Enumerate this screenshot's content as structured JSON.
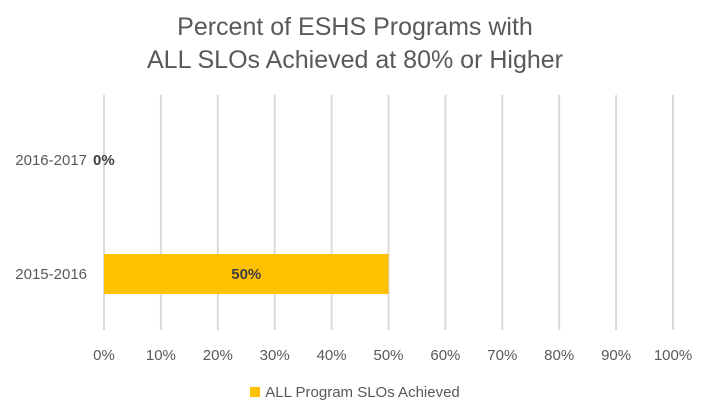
{
  "chart_data": {
    "type": "bar",
    "orientation": "horizontal",
    "title": [
      "Percent of ESHS Programs with",
      "ALL SLOs Achieved at 80% or Higher"
    ],
    "categories": [
      "2016-2017",
      "2015-2016"
    ],
    "series": [
      {
        "name": "ALL Program SLOs Achieved",
        "values": [
          0,
          50
        ],
        "color": "#FFC000"
      }
    ],
    "data_labels": [
      "0%",
      "50%"
    ],
    "xlim": [
      0,
      100
    ],
    "x_ticks": [
      "0%",
      "10%",
      "20%",
      "30%",
      "40%",
      "50%",
      "60%",
      "70%",
      "80%",
      "90%",
      "100%"
    ],
    "grid": "vertical",
    "legend_position": "bottom"
  }
}
